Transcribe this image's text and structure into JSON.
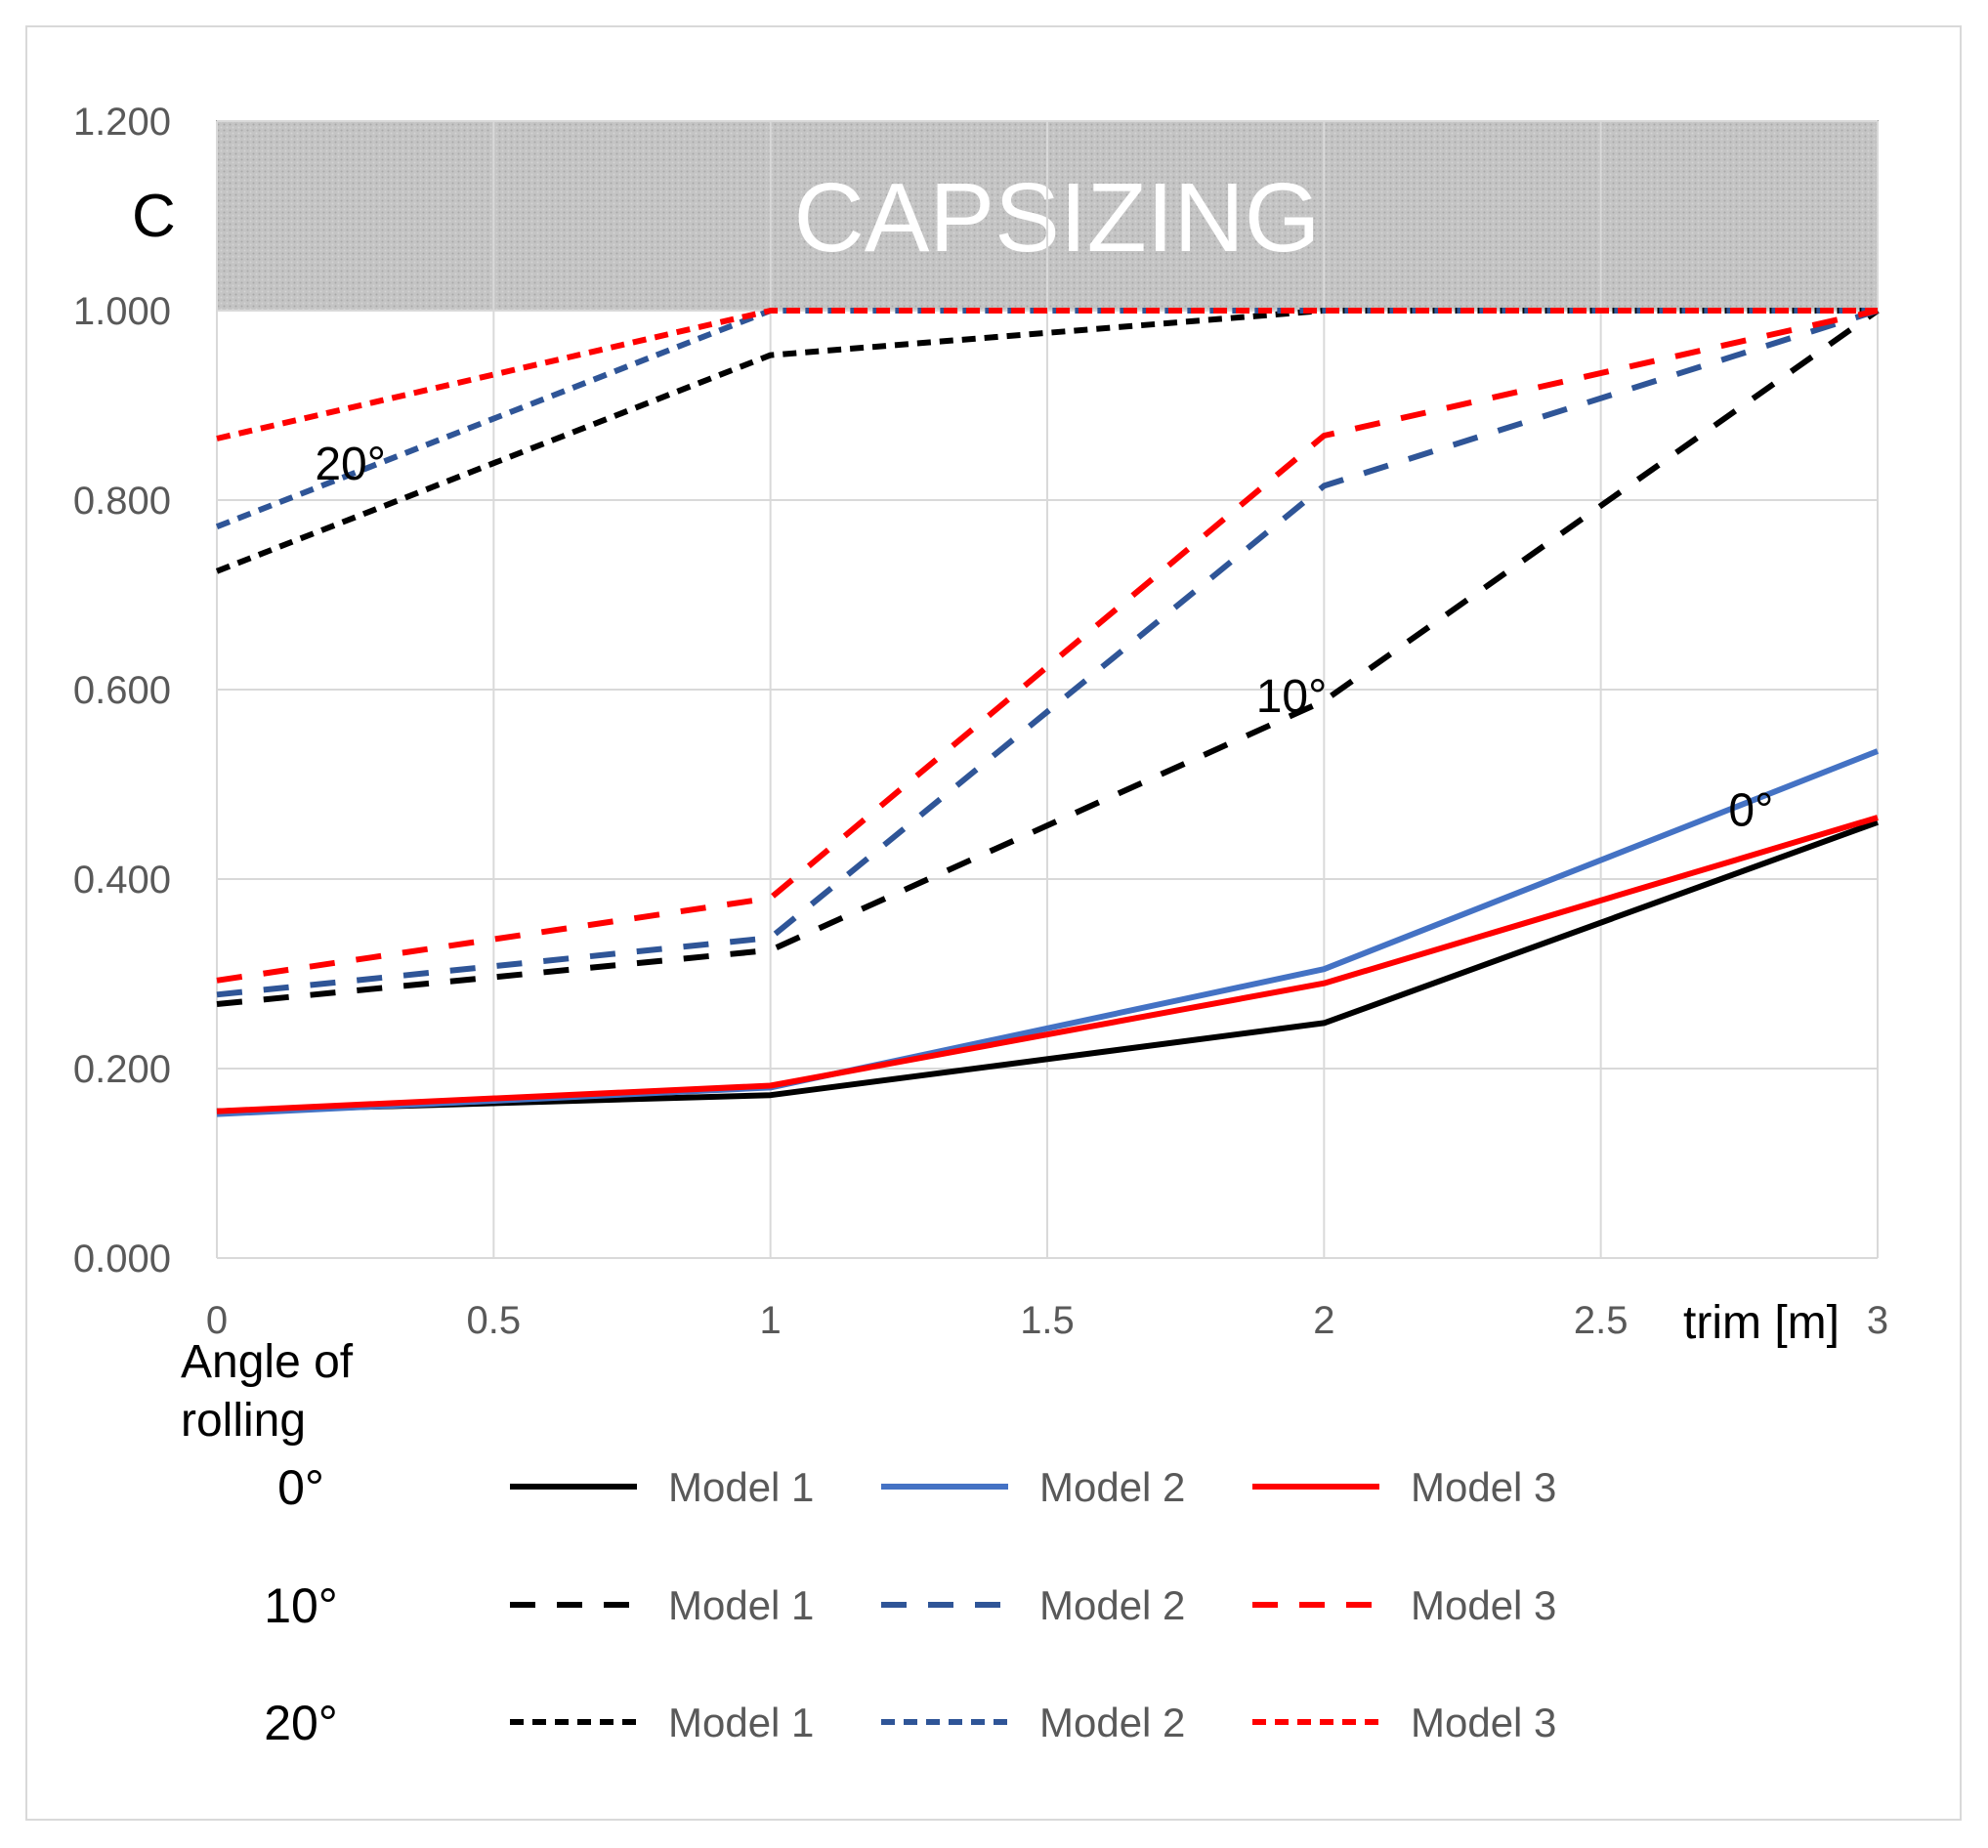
{
  "chart_data": {
    "type": "line",
    "ylabel": "C",
    "xlabel": "trim [m]",
    "xlim": [
      0,
      3
    ],
    "ylim": [
      0,
      1.2
    ],
    "x_ticks": [
      "0",
      "0.5",
      "1",
      "1.5",
      "2",
      "2.5",
      "3"
    ],
    "y_ticks": [
      "0.000",
      "0.200",
      "0.400",
      "0.600",
      "0.800",
      "1.000",
      "1.200"
    ],
    "grid": true,
    "capsizing_band": {
      "label": "CAPSIZING",
      "from": 1.0,
      "to": 1.2,
      "color": "#bfbfbf"
    },
    "x": [
      0,
      1,
      2,
      3
    ],
    "series": [
      {
        "name": "Model 1",
        "angle": "0°",
        "color": "#000000",
        "dash": "solid",
        "values": [
          0.155,
          0.172,
          0.248,
          0.46
        ]
      },
      {
        "name": "Model 2",
        "angle": "0°",
        "color": "#4472c4",
        "dash": "solid",
        "values": [
          0.152,
          0.18,
          0.305,
          0.535
        ]
      },
      {
        "name": "Model 3",
        "angle": "0°",
        "color": "#ff0000",
        "dash": "solid",
        "values": [
          0.155,
          0.182,
          0.29,
          0.465
        ]
      },
      {
        "name": "Model 1",
        "angle": "10°",
        "color": "#000000",
        "dash": "long",
        "values": [
          0.268,
          0.325,
          0.588,
          1.0
        ]
      },
      {
        "name": "Model 2",
        "angle": "10°",
        "color": "#2f5597",
        "dash": "long",
        "values": [
          0.278,
          0.338,
          0.815,
          1.0
        ]
      },
      {
        "name": "Model 3",
        "angle": "10°",
        "color": "#ff0000",
        "dash": "long",
        "values": [
          0.293,
          0.38,
          0.868,
          1.0
        ]
      },
      {
        "name": "Model 1",
        "angle": "20°",
        "color": "#000000",
        "dash": "short",
        "values": [
          0.725,
          0.953,
          1.0,
          1.0
        ]
      },
      {
        "name": "Model 2",
        "angle": "20°",
        "color": "#2f5597",
        "dash": "short",
        "values": [
          0.772,
          1.0,
          1.0,
          1.0
        ]
      },
      {
        "name": "Model 3",
        "angle": "20°",
        "color": "#ff0000",
        "dash": "short",
        "values": [
          0.865,
          1.0,
          1.0,
          1.0
        ]
      }
    ],
    "annotations": [
      {
        "text": "20°",
        "x": 0.25,
        "y": 0.84
      },
      {
        "text": "10°",
        "x": 1.95,
        "y": 0.595
      },
      {
        "text": "0°",
        "x": 2.78,
        "y": 0.475
      }
    ],
    "legend": {
      "title": "Angle of rolling",
      "title_lines": [
        "Angle of",
        "rolling"
      ],
      "rows": [
        "0°",
        "10°",
        "20°"
      ],
      "models": [
        "Model 1",
        "Model 2",
        "Model 3"
      ],
      "placement": "bottom"
    }
  }
}
